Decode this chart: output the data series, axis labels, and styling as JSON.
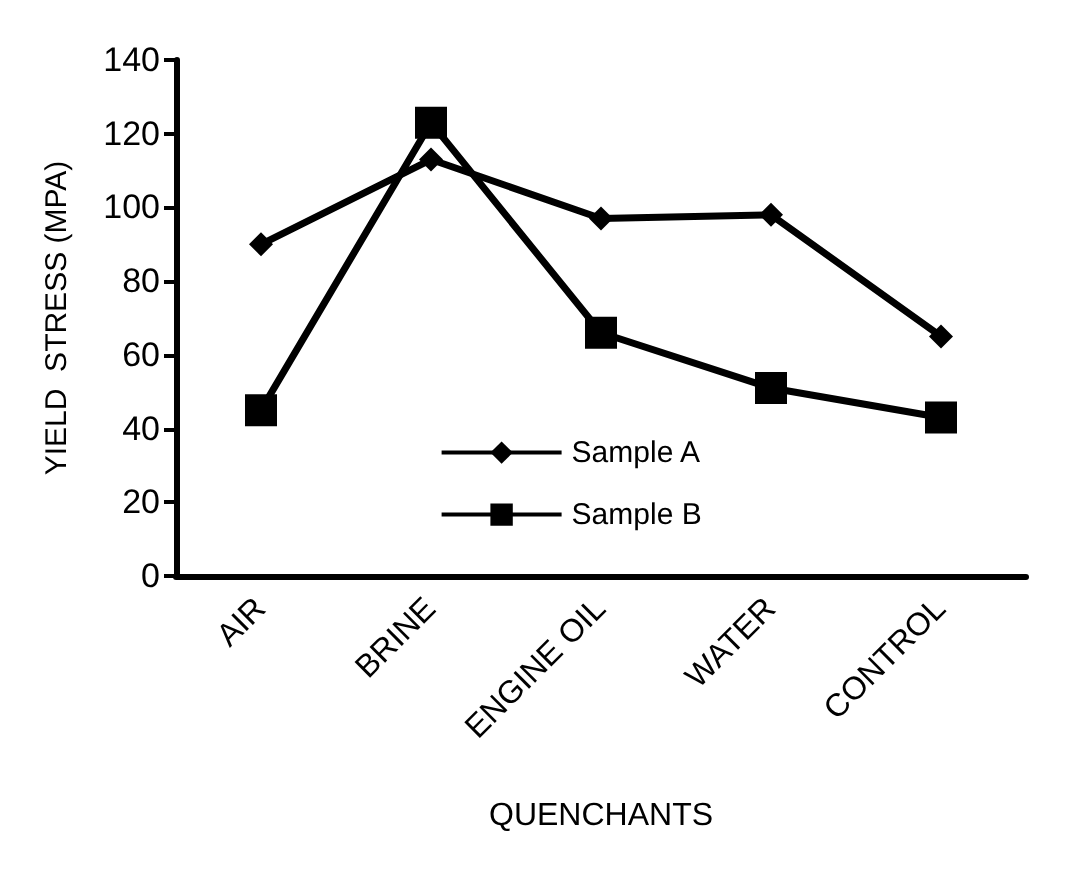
{
  "chart_data": {
    "type": "line",
    "xlabel": "QUENCHANTS",
    "ylabel": "YIELD  STRESS (MPA)",
    "categories": [
      "AIR",
      "BRINE",
      "ENGINE OIL",
      "WATER",
      "CONTROL"
    ],
    "series": [
      {
        "name": "Sample A",
        "color": "#000000",
        "marker": "diamond",
        "values": [
          90,
          113,
          97,
          98,
          65
        ]
      },
      {
        "name": "Sample B",
        "color": "#000000",
        "marker": "square",
        "values": [
          45,
          123,
          66,
          51,
          43
        ]
      }
    ],
    "ylim": [
      0,
      140
    ],
    "yticks": [
      0,
      20,
      40,
      60,
      80,
      100,
      120,
      140
    ],
    "grid": false,
    "legend": "bottom",
    "line_style": "solid"
  }
}
